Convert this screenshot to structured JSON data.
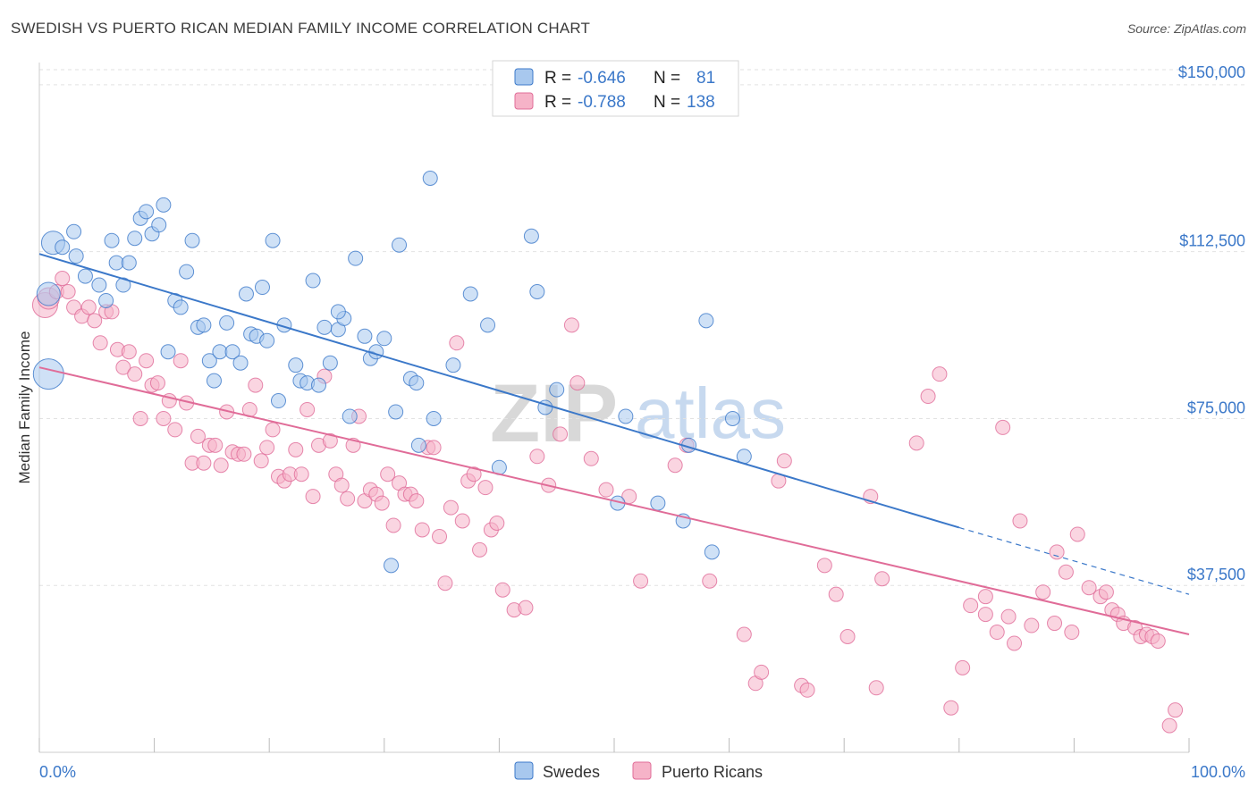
{
  "title": "SWEDISH VS PUERTO RICAN MEDIAN FAMILY INCOME CORRELATION CHART",
  "source": "Source: ZipAtlas.com",
  "watermark": {
    "part1": "ZIP",
    "part2": "atlas"
  },
  "colors": {
    "blue": "#3b78c9",
    "blue_fill": "#a8c8ee",
    "pink": "#e06c98",
    "pink_fill": "#f6b3c8",
    "grid": "#e2e2e2"
  },
  "legend": {
    "rows": [
      {
        "r_label": "R = ",
        "r_value": "-0.646",
        "n_label": "N = ",
        "n_value": "81"
      },
      {
        "r_label": "R = ",
        "r_value": "-0.788",
        "n_label": "N = ",
        "n_value": "138"
      }
    ]
  },
  "chart_data": {
    "type": "scatter",
    "title": "SWEDISH VS PUERTO RICAN MEDIAN FAMILY INCOME CORRELATION CHART",
    "xlabel": "",
    "ylabel": "Median Family Income",
    "xlim": [
      0,
      100
    ],
    "ylim": [
      0,
      155000
    ],
    "x_tick_labels": [
      "0.0%",
      "100.0%"
    ],
    "y_ticks": [
      37500,
      75000,
      112500,
      150000
    ],
    "y_tick_labels": [
      "$37,500",
      "$75,000",
      "$112,500",
      "$150,000"
    ],
    "grid": true,
    "legend_position": "bottom-center",
    "series": [
      {
        "name": "Swedes",
        "r": -0.646,
        "n": 81,
        "trend": {
          "x0": 0,
          "y0": 112000,
          "x1": 80,
          "y1": 50500,
          "dashed_to_x": 100,
          "dashed_to_y": 35500
        },
        "points": [
          [
            0.8,
            85000
          ],
          [
            0.8,
            103000
          ],
          [
            1.2,
            114500
          ],
          [
            2.0,
            113500
          ],
          [
            3.0,
            117000
          ],
          [
            3.2,
            111500
          ],
          [
            4.0,
            107000
          ],
          [
            5.2,
            105000
          ],
          [
            5.8,
            101500
          ],
          [
            6.3,
            115000
          ],
          [
            6.7,
            110000
          ],
          [
            7.3,
            105000
          ],
          [
            7.8,
            110000
          ],
          [
            8.3,
            115500
          ],
          [
            8.8,
            120000
          ],
          [
            9.3,
            121500
          ],
          [
            9.8,
            116500
          ],
          [
            10.4,
            118500
          ],
          [
            10.8,
            123000
          ],
          [
            11.2,
            90000
          ],
          [
            11.8,
            101500
          ],
          [
            12.3,
            100000
          ],
          [
            12.8,
            108000
          ],
          [
            13.3,
            115000
          ],
          [
            13.8,
            95500
          ],
          [
            14.3,
            96000
          ],
          [
            14.8,
            88000
          ],
          [
            15.2,
            83500
          ],
          [
            15.7,
            90000
          ],
          [
            16.3,
            96500
          ],
          [
            16.8,
            90000
          ],
          [
            17.5,
            87500
          ],
          [
            18.0,
            103000
          ],
          [
            18.4,
            94000
          ],
          [
            18.9,
            93500
          ],
          [
            19.4,
            104500
          ],
          [
            19.8,
            92500
          ],
          [
            20.3,
            115000
          ],
          [
            20.8,
            79000
          ],
          [
            21.3,
            96000
          ],
          [
            22.3,
            87000
          ],
          [
            22.7,
            83500
          ],
          [
            23.3,
            83000
          ],
          [
            23.8,
            106000
          ],
          [
            24.3,
            82500
          ],
          [
            24.8,
            95500
          ],
          [
            25.3,
            87500
          ],
          [
            26.0,
            95000
          ],
          [
            26.5,
            97500
          ],
          [
            27.0,
            75500
          ],
          [
            27.5,
            111000
          ],
          [
            28.3,
            93500
          ],
          [
            28.8,
            88500
          ],
          [
            29.3,
            90000
          ],
          [
            30.0,
            93000
          ],
          [
            30.6,
            42000
          ],
          [
            31.0,
            76500
          ],
          [
            31.3,
            114000
          ],
          [
            32.3,
            84000
          ],
          [
            32.8,
            83000
          ],
          [
            33.0,
            69000
          ],
          [
            34.3,
            75000
          ],
          [
            36.0,
            87000
          ],
          [
            37.5,
            103000
          ],
          [
            39.0,
            96000
          ],
          [
            40.0,
            64000
          ],
          [
            42.8,
            116000
          ],
          [
            43.3,
            103500
          ],
          [
            44.0,
            77500
          ],
          [
            45.0,
            81500
          ],
          [
            50.3,
            56000
          ],
          [
            51.0,
            75500
          ],
          [
            53.8,
            56000
          ],
          [
            56.0,
            52000
          ],
          [
            58.0,
            97000
          ],
          [
            58.5,
            45000
          ],
          [
            60.3,
            75000
          ],
          [
            61.3,
            66500
          ],
          [
            34.0,
            129000
          ],
          [
            56.5,
            69000
          ],
          [
            26.0,
            99000
          ]
        ]
      },
      {
        "name": "Puerto Ricans",
        "r": -0.788,
        "n": 138,
        "trend": {
          "x0": 0,
          "y0": 86500,
          "x1": 100,
          "y1": 26500
        },
        "points": [
          [
            0.5,
            100500
          ],
          [
            0.8,
            102000
          ],
          [
            1.5,
            103500
          ],
          [
            2.0,
            106500
          ],
          [
            2.5,
            103500
          ],
          [
            3.0,
            100000
          ],
          [
            3.7,
            98000
          ],
          [
            4.3,
            100000
          ],
          [
            4.8,
            97000
          ],
          [
            5.3,
            92000
          ],
          [
            5.8,
            99000
          ],
          [
            6.3,
            99000
          ],
          [
            6.8,
            90500
          ],
          [
            7.3,
            86500
          ],
          [
            7.8,
            90000
          ],
          [
            8.3,
            85000
          ],
          [
            8.8,
            75000
          ],
          [
            9.3,
            88000
          ],
          [
            9.8,
            82500
          ],
          [
            10.3,
            83000
          ],
          [
            10.8,
            75000
          ],
          [
            11.3,
            79000
          ],
          [
            11.8,
            72500
          ],
          [
            12.3,
            88000
          ],
          [
            12.8,
            78500
          ],
          [
            13.3,
            65000
          ],
          [
            13.8,
            71000
          ],
          [
            14.3,
            65000
          ],
          [
            14.8,
            69000
          ],
          [
            15.3,
            69000
          ],
          [
            15.8,
            64500
          ],
          [
            16.3,
            76500
          ],
          [
            16.8,
            67500
          ],
          [
            17.3,
            67000
          ],
          [
            17.8,
            67000
          ],
          [
            18.3,
            77000
          ],
          [
            18.8,
            82500
          ],
          [
            19.3,
            65500
          ],
          [
            19.8,
            68500
          ],
          [
            20.3,
            72500
          ],
          [
            20.8,
            62000
          ],
          [
            21.3,
            61000
          ],
          [
            21.8,
            62500
          ],
          [
            22.3,
            68000
          ],
          [
            22.8,
            62500
          ],
          [
            23.3,
            77000
          ],
          [
            23.8,
            57500
          ],
          [
            24.3,
            69000
          ],
          [
            24.8,
            84500
          ],
          [
            25.3,
            70000
          ],
          [
            25.8,
            62500
          ],
          [
            26.3,
            60000
          ],
          [
            26.8,
            57000
          ],
          [
            27.3,
            69000
          ],
          [
            27.8,
            75500
          ],
          [
            28.3,
            56500
          ],
          [
            28.8,
            59000
          ],
          [
            29.3,
            58000
          ],
          [
            29.8,
            56000
          ],
          [
            30.3,
            62500
          ],
          [
            30.8,
            51000
          ],
          [
            31.3,
            60500
          ],
          [
            31.8,
            58000
          ],
          [
            32.3,
            58000
          ],
          [
            32.8,
            56500
          ],
          [
            33.3,
            50000
          ],
          [
            33.8,
            68500
          ],
          [
            34.3,
            68500
          ],
          [
            34.8,
            48500
          ],
          [
            35.3,
            38000
          ],
          [
            35.8,
            55000
          ],
          [
            36.3,
            92000
          ],
          [
            36.8,
            52000
          ],
          [
            37.3,
            61000
          ],
          [
            37.8,
            62500
          ],
          [
            38.3,
            45500
          ],
          [
            38.8,
            59500
          ],
          [
            39.3,
            50000
          ],
          [
            39.8,
            51500
          ],
          [
            40.3,
            36500
          ],
          [
            41.3,
            32000
          ],
          [
            42.3,
            32500
          ],
          [
            43.3,
            66500
          ],
          [
            44.3,
            60000
          ],
          [
            45.3,
            71500
          ],
          [
            46.3,
            96000
          ],
          [
            46.8,
            83000
          ],
          [
            48.0,
            66000
          ],
          [
            49.3,
            59000
          ],
          [
            51.3,
            57500
          ],
          [
            52.3,
            38500
          ],
          [
            55.3,
            64500
          ],
          [
            56.3,
            69000
          ],
          [
            58.3,
            38500
          ],
          [
            61.3,
            26500
          ],
          [
            62.3,
            15500
          ],
          [
            62.8,
            18000
          ],
          [
            64.3,
            61000
          ],
          [
            64.8,
            65500
          ],
          [
            66.3,
            15000
          ],
          [
            66.8,
            14000
          ],
          [
            68.3,
            42000
          ],
          [
            69.3,
            35500
          ],
          [
            70.3,
            26000
          ],
          [
            72.3,
            57500
          ],
          [
            73.3,
            39000
          ],
          [
            76.3,
            69500
          ],
          [
            77.3,
            80000
          ],
          [
            78.3,
            85000
          ],
          [
            79.3,
            10000
          ],
          [
            80.3,
            19000
          ],
          [
            82.3,
            35000
          ],
          [
            82.3,
            31000
          ],
          [
            83.3,
            27000
          ],
          [
            83.8,
            73000
          ],
          [
            84.3,
            30500
          ],
          [
            84.8,
            24500
          ],
          [
            85.3,
            52000
          ],
          [
            86.3,
            28500
          ],
          [
            87.3,
            36000
          ],
          [
            88.3,
            29000
          ],
          [
            89.3,
            40500
          ],
          [
            89.8,
            27000
          ],
          [
            90.3,
            49000
          ],
          [
            91.3,
            37000
          ],
          [
            92.3,
            35000
          ],
          [
            92.8,
            36000
          ],
          [
            93.3,
            32000
          ],
          [
            93.8,
            31000
          ],
          [
            94.3,
            29000
          ],
          [
            95.3,
            28000
          ],
          [
            95.8,
            26000
          ],
          [
            96.3,
            26500
          ],
          [
            96.8,
            26000
          ],
          [
            97.3,
            25000
          ],
          [
            98.3,
            6000
          ],
          [
            98.8,
            9500
          ],
          [
            81.0,
            33000
          ],
          [
            72.8,
            14500
          ],
          [
            88.5,
            45000
          ]
        ]
      }
    ]
  }
}
